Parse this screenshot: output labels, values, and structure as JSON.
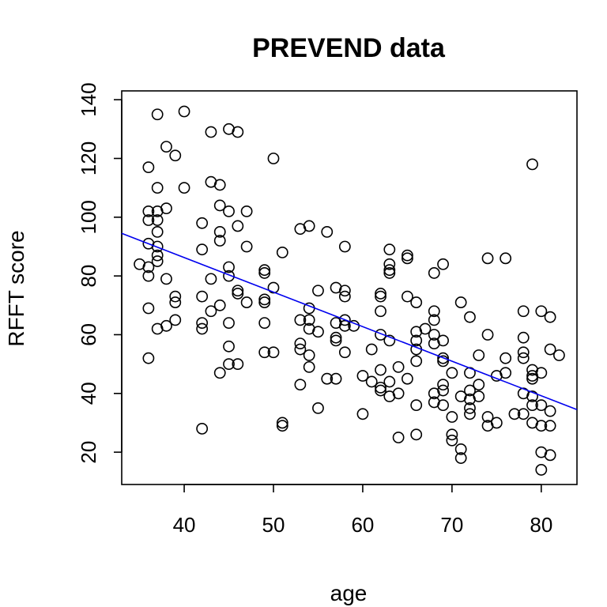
{
  "chart_data": {
    "type": "scatter",
    "title": "PREVEND data",
    "xlabel": "age",
    "ylabel": "RFFT score",
    "xlim": [
      33,
      84
    ],
    "ylim": [
      9,
      143
    ],
    "x_ticks": [
      40,
      50,
      60,
      70,
      80
    ],
    "y_ticks": [
      20,
      40,
      60,
      80,
      100,
      120,
      140
    ],
    "grid": false,
    "legend": "none",
    "colors": {
      "points": "#000000",
      "fit_line": "#0000ee"
    },
    "fit_line": {
      "x": [
        33,
        84
      ],
      "y": [
        94.5,
        34.5
      ]
    },
    "points": [
      [
        35,
        84
      ],
      [
        36,
        117
      ],
      [
        36,
        102
      ],
      [
        36,
        99
      ],
      [
        36,
        91
      ],
      [
        36,
        83
      ],
      [
        36,
        80
      ],
      [
        36,
        69
      ],
      [
        36,
        52
      ],
      [
        37,
        135
      ],
      [
        37,
        110
      ],
      [
        37,
        102
      ],
      [
        37,
        99
      ],
      [
        37,
        95
      ],
      [
        37,
        90
      ],
      [
        37,
        87
      ],
      [
        37,
        85
      ],
      [
        37,
        62
      ],
      [
        38,
        124
      ],
      [
        38,
        103
      ],
      [
        38,
        79
      ],
      [
        38,
        63
      ],
      [
        39,
        121
      ],
      [
        39,
        73
      ],
      [
        39,
        71
      ],
      [
        39,
        65
      ],
      [
        40,
        136
      ],
      [
        40,
        110
      ],
      [
        42,
        98
      ],
      [
        42,
        89
      ],
      [
        42,
        73
      ],
      [
        42,
        64
      ],
      [
        42,
        62
      ],
      [
        42,
        28
      ],
      [
        43,
        129
      ],
      [
        43,
        112
      ],
      [
        43,
        79
      ],
      [
        43,
        68
      ],
      [
        44,
        111
      ],
      [
        44,
        104
      ],
      [
        44,
        95
      ],
      [
        44,
        92
      ],
      [
        44,
        70
      ],
      [
        44,
        47
      ],
      [
        45,
        130
      ],
      [
        45,
        102
      ],
      [
        45,
        83
      ],
      [
        45,
        80
      ],
      [
        45,
        64
      ],
      [
        45,
        56
      ],
      [
        45,
        50
      ],
      [
        46,
        129
      ],
      [
        46,
        97
      ],
      [
        46,
        75
      ],
      [
        46,
        74
      ],
      [
        46,
        50
      ],
      [
        47,
        102
      ],
      [
        47,
        90
      ],
      [
        47,
        71
      ],
      [
        49,
        82
      ],
      [
        49,
        81
      ],
      [
        49,
        72
      ],
      [
        49,
        71
      ],
      [
        49,
        64
      ],
      [
        49,
        54
      ],
      [
        50,
        120
      ],
      [
        50,
        76
      ],
      [
        50,
        54
      ],
      [
        51,
        88
      ],
      [
        51,
        30
      ],
      [
        51,
        29
      ],
      [
        53,
        96
      ],
      [
        53,
        65
      ],
      [
        53,
        57
      ],
      [
        53,
        55
      ],
      [
        53,
        43
      ],
      [
        54,
        97
      ],
      [
        54,
        69
      ],
      [
        54,
        65
      ],
      [
        54,
        62
      ],
      [
        54,
        53
      ],
      [
        54,
        49
      ],
      [
        55,
        75
      ],
      [
        55,
        61
      ],
      [
        55,
        35
      ],
      [
        56,
        95
      ],
      [
        56,
        45
      ],
      [
        57,
        76
      ],
      [
        57,
        64
      ],
      [
        57,
        59
      ],
      [
        57,
        58
      ],
      [
        57,
        45
      ],
      [
        58,
        90
      ],
      [
        58,
        75
      ],
      [
        58,
        73
      ],
      [
        58,
        65
      ],
      [
        58,
        63
      ],
      [
        58,
        54
      ],
      [
        59,
        63
      ],
      [
        60,
        46
      ],
      [
        60,
        33
      ],
      [
        61,
        55
      ],
      [
        61,
        44
      ],
      [
        62,
        74
      ],
      [
        62,
        73
      ],
      [
        62,
        68
      ],
      [
        62,
        60
      ],
      [
        62,
        48
      ],
      [
        62,
        42
      ],
      [
        62,
        41
      ],
      [
        63,
        89
      ],
      [
        63,
        84
      ],
      [
        63,
        82
      ],
      [
        63,
        81
      ],
      [
        63,
        58
      ],
      [
        63,
        44
      ],
      [
        63,
        39
      ],
      [
        64,
        49
      ],
      [
        64,
        40
      ],
      [
        64,
        25
      ],
      [
        65,
        87
      ],
      [
        65,
        86
      ],
      [
        65,
        73
      ],
      [
        65,
        45
      ],
      [
        66,
        71
      ],
      [
        66,
        61
      ],
      [
        66,
        58
      ],
      [
        66,
        55
      ],
      [
        66,
        51
      ],
      [
        66,
        36
      ],
      [
        66,
        26
      ],
      [
        67,
        62
      ],
      [
        68,
        81
      ],
      [
        68,
        68
      ],
      [
        68,
        65
      ],
      [
        68,
        60
      ],
      [
        68,
        57
      ],
      [
        68,
        40
      ],
      [
        68,
        37
      ],
      [
        69,
        84
      ],
      [
        69,
        58
      ],
      [
        69,
        52
      ],
      [
        69,
        51
      ],
      [
        69,
        43
      ],
      [
        69,
        41
      ],
      [
        69,
        36
      ],
      [
        70,
        47
      ],
      [
        70,
        32
      ],
      [
        70,
        26
      ],
      [
        70,
        24
      ],
      [
        71,
        71
      ],
      [
        71,
        39
      ],
      [
        71,
        21
      ],
      [
        71,
        18
      ],
      [
        72,
        66
      ],
      [
        72,
        47
      ],
      [
        72,
        41
      ],
      [
        72,
        38
      ],
      [
        72,
        35
      ],
      [
        72,
        33
      ],
      [
        73,
        53
      ],
      [
        73,
        43
      ],
      [
        73,
        39
      ],
      [
        74,
        86
      ],
      [
        74,
        60
      ],
      [
        74,
        32
      ],
      [
        74,
        29
      ],
      [
        75,
        46
      ],
      [
        75,
        30
      ],
      [
        76,
        86
      ],
      [
        76,
        52
      ],
      [
        76,
        47
      ],
      [
        77,
        33
      ],
      [
        78,
        68
      ],
      [
        78,
        59
      ],
      [
        78,
        54
      ],
      [
        78,
        52
      ],
      [
        78,
        40
      ],
      [
        78,
        33
      ],
      [
        79,
        118
      ],
      [
        79,
        48
      ],
      [
        79,
        46
      ],
      [
        79,
        45
      ],
      [
        79,
        39
      ],
      [
        79,
        36
      ],
      [
        79,
        30
      ],
      [
        80,
        68
      ],
      [
        80,
        47
      ],
      [
        80,
        36
      ],
      [
        80,
        29
      ],
      [
        80,
        20
      ],
      [
        80,
        14
      ],
      [
        81,
        66
      ],
      [
        81,
        55
      ],
      [
        81,
        34
      ],
      [
        81,
        29
      ],
      [
        81,
        19
      ],
      [
        82,
        53
      ]
    ]
  }
}
